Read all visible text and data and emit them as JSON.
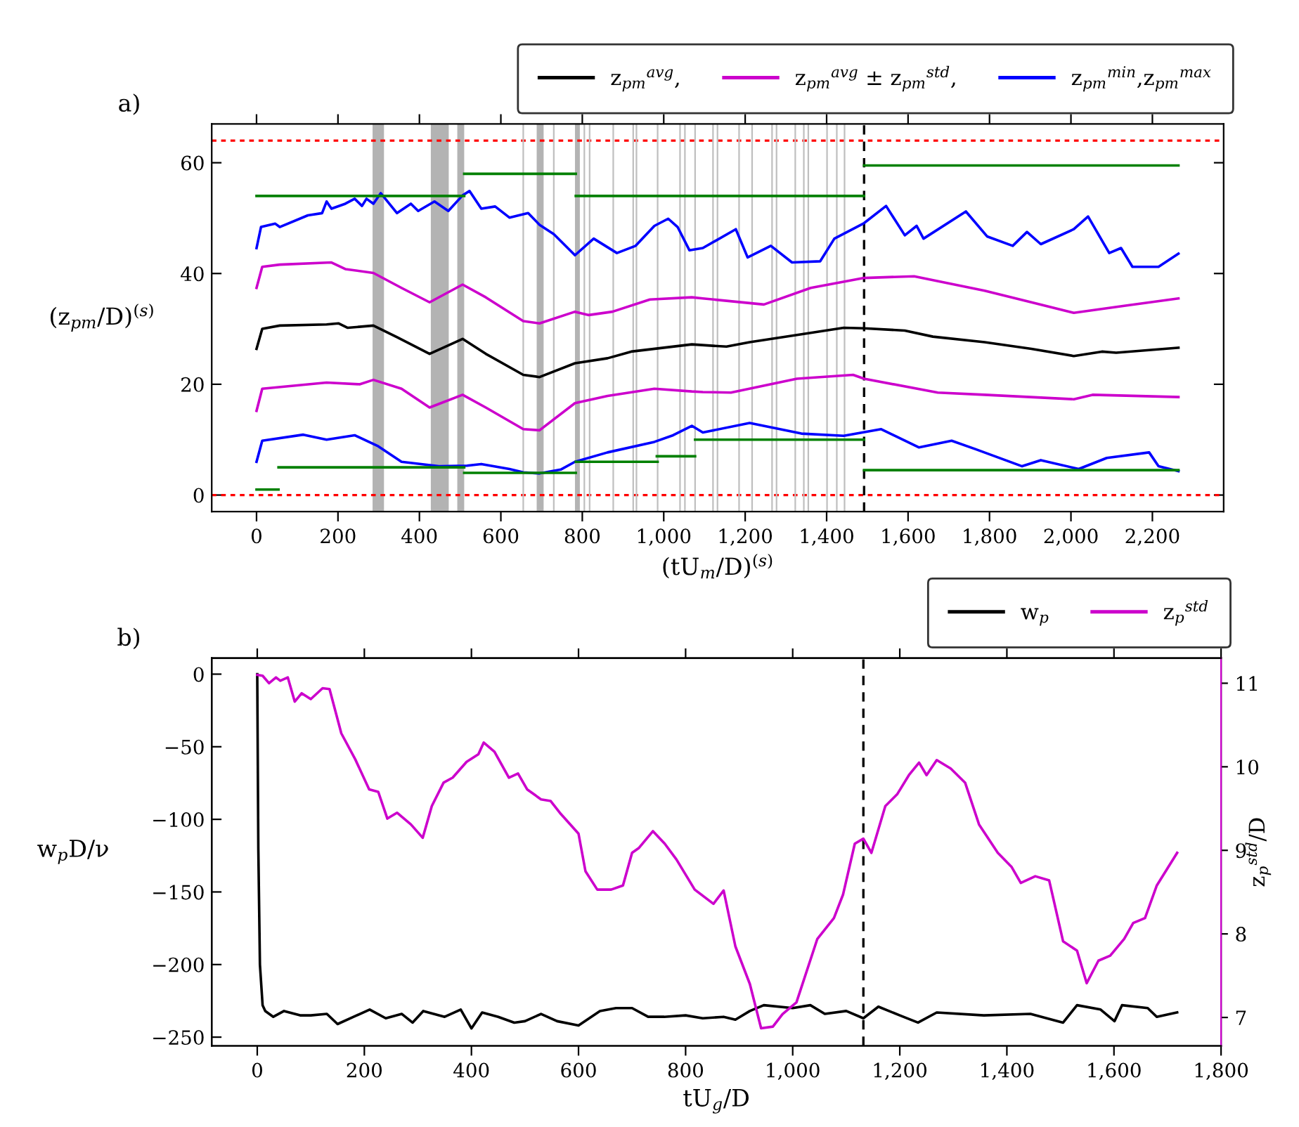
{
  "chart_data": [
    {
      "type": "line",
      "xlabel": "(tU$_{m}$/D)$^{(s)}$",
      "ylabel": "(z$_{pm}$/D)$^{(s)}$",
      "annotations": [
        "a)"
      ],
      "xlim": [
        -110,
        2375
      ],
      "ylim": [
        -3,
        67
      ],
      "xticks": [
        0,
        200,
        400,
        600,
        800,
        {
          "value": 1000,
          "label": "1,000"
        },
        {
          "value": 1200,
          "label": "1,200"
        },
        {
          "value": 1400,
          "label": "1,400"
        },
        {
          "value": 1600,
          "label": "1,600"
        },
        {
          "value": 1800,
          "label": "1,800"
        },
        {
          "value": 2000,
          "label": "2,000"
        },
        {
          "value": 2200,
          "label": "2,200"
        }
      ],
      "yticks": [
        0,
        20,
        40,
        60
      ],
      "grid": false,
      "legend": "top right",
      "ref_lines": [
        {
          "axis": "y",
          "value": 0,
          "color": "#ff0000",
          "line_style": "dotted"
        },
        {
          "axis": "y",
          "value": 64,
          "color": "#ff0000",
          "line_style": "dotted"
        },
        {
          "axis": "x",
          "value": 1492,
          "color": "#000000",
          "line_style": "dashed"
        },
        {
          "axis": "x",
          "value": 655,
          "color": "#bfbfbf"
        },
        {
          "axis": "x",
          "value": 730,
          "color": "#bfbfbf"
        },
        {
          "axis": "x",
          "value": 805,
          "color": "#bfbfbf"
        },
        {
          "axis": "x",
          "value": 818,
          "color": "#bfbfbf"
        },
        {
          "axis": "x",
          "value": 876,
          "color": "#bfbfbf"
        },
        {
          "axis": "x",
          "value": 925,
          "color": "#bfbfbf"
        },
        {
          "axis": "x",
          "value": 933,
          "color": "#bfbfbf"
        },
        {
          "axis": "x",
          "value": 985,
          "color": "#bfbfbf"
        },
        {
          "axis": "x",
          "value": 1040,
          "color": "#bfbfbf"
        },
        {
          "axis": "x",
          "value": 1052,
          "color": "#bfbfbf"
        },
        {
          "axis": "x",
          "value": 1077,
          "color": "#bfbfbf"
        },
        {
          "axis": "x",
          "value": 1121,
          "color": "#bfbfbf"
        },
        {
          "axis": "x",
          "value": 1132,
          "color": "#bfbfbf"
        },
        {
          "axis": "x",
          "value": 1185,
          "color": "#bfbfbf"
        },
        {
          "axis": "x",
          "value": 1217,
          "color": "#bfbfbf"
        },
        {
          "axis": "x",
          "value": 1266,
          "color": "#bfbfbf"
        },
        {
          "axis": "x",
          "value": 1277,
          "color": "#bfbfbf"
        },
        {
          "axis": "x",
          "value": 1323,
          "color": "#bfbfbf"
        },
        {
          "axis": "x",
          "value": 1344,
          "color": "#bfbfbf"
        },
        {
          "axis": "x",
          "value": 1355,
          "color": "#bfbfbf"
        },
        {
          "axis": "x",
          "value": 1401,
          "color": "#bfbfbf"
        },
        {
          "axis": "x",
          "value": 1425,
          "color": "#bfbfbf"
        },
        {
          "axis": "x",
          "value": 1444,
          "color": "#bfbfbf"
        }
      ],
      "bands": [
        {
          "axis": "x",
          "from": 285,
          "to": 313,
          "color": "#b3b3b3"
        },
        {
          "axis": "x",
          "from": 428,
          "to": 472,
          "color": "#b3b3b3"
        },
        {
          "axis": "x",
          "from": 493,
          "to": 510,
          "color": "#b3b3b3"
        },
        {
          "axis": "x",
          "from": 688,
          "to": 705,
          "color": "#b3b3b3"
        },
        {
          "axis": "x",
          "from": 782,
          "to": 794,
          "color": "#b3b3b3"
        }
      ],
      "series": [
        {
          "name": "z$_{pm}$$^{avg}$,",
          "color": "#000000",
          "x": [
            0,
            14,
            57,
            172,
            201,
            224,
            287,
            345,
            425,
            506,
            563,
            655,
            695,
            782,
            862,
            920,
            1069,
            1154,
            1211,
            1327,
            1442,
            1492,
            1592,
            1661,
            1788,
            1903,
            2007,
            2076,
            2111,
            2264
          ],
          "values": [
            26.4,
            30.0,
            30.6,
            30.8,
            31.0,
            30.2,
            30.6,
            28.5,
            25.5,
            28.2,
            25.5,
            21.7,
            21.3,
            23.8,
            24.7,
            25.9,
            27.2,
            26.8,
            27.6,
            28.9,
            30.2,
            30.1,
            29.7,
            28.6,
            27.6,
            26.4,
            25.1,
            25.9,
            25.7,
            26.6
          ]
        },
        {
          "name": "z$_{pm}$$^{avg}$ ± z$_{pm}$$^{std}$,",
          "color": "#cc00cc",
          "x": [
            0,
            14,
            57,
            184,
            218,
            287,
            356,
            425,
            506,
            563,
            655,
            695,
            782,
            816,
            874,
            966,
            1069,
            1096,
            1246,
            1361,
            1492,
            1615,
            1788,
            1903,
            2007,
            2134,
            2264
          ],
          "values": [
            37.4,
            41.2,
            41.6,
            42.0,
            40.8,
            40.1,
            37.4,
            34.8,
            38.0,
            35.7,
            31.4,
            31.0,
            33.1,
            32.5,
            33.1,
            35.3,
            35.7,
            35.5,
            34.4,
            37.4,
            39.2,
            39.5,
            36.9,
            34.8,
            32.9,
            34.2,
            35.5
          ]
        },
        {
          "color": "#cc00cc",
          "x": [
            0,
            14,
            172,
            253,
            287,
            356,
            425,
            506,
            563,
            655,
            695,
            782,
            862,
            977,
            1069,
            1096,
            1165,
            1327,
            1465,
            1492,
            1673,
            1788,
            2007,
            2053,
            2264
          ],
          "values": [
            15.2,
            19.2,
            20.3,
            20.0,
            20.8,
            19.2,
            15.8,
            18.1,
            15.8,
            11.9,
            11.7,
            16.6,
            17.9,
            19.2,
            18.7,
            18.6,
            18.5,
            21.0,
            21.7,
            21.0,
            18.5,
            18.1,
            17.3,
            18.1,
            17.7
          ]
        },
        {
          "name": "z$_{pm}$$^{min}$,z$_{pm}$$^{max}$",
          "color": "#0000ff",
          "x": [
            0,
            11,
            46,
            57,
            126,
            161,
            172,
            184,
            218,
            241,
            259,
            270,
            287,
            305,
            345,
            379,
            397,
            437,
            471,
            506,
            523,
            552,
            586,
            621,
            667,
            695,
            730,
            782,
            828,
            885,
            931,
            977,
            1011,
            1034,
            1063,
            1096,
            1177,
            1206,
            1263,
            1315,
            1384,
            1419,
            1492,
            1546,
            1592,
            1621,
            1638,
            1742,
            1794,
            1857,
            1892,
            1926,
            2007,
            2042,
            2094,
            2123,
            2151,
            2215,
            2264
          ],
          "values": [
            44.6,
            48.4,
            49.0,
            48.4,
            50.5,
            50.9,
            53.0,
            51.7,
            52.6,
            53.5,
            52.2,
            53.5,
            52.6,
            54.5,
            50.9,
            52.6,
            51.3,
            53.0,
            51.3,
            54.1,
            54.9,
            51.7,
            52.1,
            50.1,
            50.9,
            48.8,
            47.1,
            43.3,
            46.3,
            43.7,
            45.0,
            48.6,
            49.9,
            48.4,
            44.2,
            44.6,
            48.0,
            42.9,
            45.0,
            42.0,
            42.2,
            46.3,
            49.1,
            52.2,
            46.9,
            48.6,
            46.3,
            51.2,
            46.7,
            45.0,
            47.5,
            45.3,
            48.0,
            50.3,
            43.7,
            44.6,
            41.2,
            41.2,
            43.6
          ]
        },
        {
          "color": "#0000ff",
          "x": [
            0,
            14,
            115,
            172,
            241,
            299,
            356,
            448,
            517,
            552,
            621,
            655,
            695,
            747,
            782,
            862,
            977,
            1023,
            1069,
            1096,
            1211,
            1338,
            1442,
            1534,
            1627,
            1707,
            1765,
            1880,
            1926,
            2019,
            2088,
            2192,
            2215,
            2264
          ],
          "values": [
            6.0,
            9.8,
            10.9,
            10.0,
            10.8,
            8.8,
            6.0,
            5.2,
            5.3,
            5.6,
            4.7,
            4.1,
            3.9,
            4.6,
            6.0,
            7.7,
            9.6,
            10.8,
            12.5,
            11.3,
            13.0,
            11.1,
            10.7,
            11.9,
            8.6,
            9.8,
            8.3,
            5.2,
            6.3,
            4.7,
            6.7,
            7.7,
            5.2,
            4.3
          ]
        },
        {
          "color": "#008000",
          "x": [
            0,
            510
          ],
          "values": [
            54,
            54
          ]
        },
        {
          "color": "#008000",
          "x": [
            510,
            784
          ],
          "values": [
            58,
            58
          ]
        },
        {
          "color": "#008000",
          "x": [
            784,
            1492
          ],
          "values": [
            54,
            54
          ]
        },
        {
          "color": "#008000",
          "x": [
            1492,
            2264
          ],
          "values": [
            59.5,
            59.5
          ]
        },
        {
          "color": "#008000",
          "x": [
            0,
            54
          ],
          "values": [
            1,
            1
          ]
        },
        {
          "color": "#008000",
          "x": [
            54,
            510
          ],
          "values": [
            5,
            5
          ]
        },
        {
          "color": "#008000",
          "x": [
            510,
            784
          ],
          "values": [
            4,
            4
          ]
        },
        {
          "color": "#008000",
          "x": [
            784,
            985
          ],
          "values": [
            6,
            6
          ]
        },
        {
          "color": "#008000",
          "x": [
            983,
            1077
          ],
          "values": [
            7,
            7
          ]
        },
        {
          "color": "#008000",
          "x": [
            1077,
            1492
          ],
          "values": [
            10,
            10
          ]
        },
        {
          "color": "#008000",
          "x": [
            1492,
            2264
          ],
          "values": [
            4.5,
            4.5
          ]
        }
      ]
    },
    {
      "type": "line",
      "xlabel": "tU$_{g}$/D",
      "ylabel": "w$_{p}$D/ν",
      "y2label": "z$_{p}$$^{std}$/D",
      "annotations": [
        "b)"
      ],
      "xlim": [
        -85,
        1800
      ],
      "ylim": [
        -256,
        11
      ],
      "y2lim": [
        6.66,
        11.3
      ],
      "xticks": [
        0,
        200,
        400,
        600,
        800,
        {
          "value": 1000,
          "label": "1,000"
        },
        {
          "value": 1200,
          "label": "1,200"
        },
        {
          "value": 1400,
          "label": "1,400"
        },
        {
          "value": 1600,
          "label": "1,600"
        },
        {
          "value": 1800,
          "label": "1,800"
        }
      ],
      "yticks": [
        {
          "value": -250,
          "label": "−250"
        },
        {
          "value": -200,
          "label": "−200"
        },
        {
          "value": -150,
          "label": "−150"
        },
        {
          "value": -100,
          "label": "−100"
        },
        {
          "value": -50,
          "label": "−50"
        },
        0
      ],
      "y2ticks": [
        7,
        8,
        9,
        10,
        11
      ],
      "grid": false,
      "legend": "top right",
      "ref_lines": [
        {
          "axis": "x",
          "value": 1132,
          "color": "#000000",
          "line_style": "dashed"
        }
      ],
      "series": [
        {
          "name": "w$_{p}$",
          "color": "#000000",
          "x": [
            0,
            2,
            5,
            10,
            15,
            30,
            50,
            80,
            100,
            130,
            150,
            180,
            210,
            240,
            270,
            290,
            310,
            350,
            380,
            400,
            420,
            450,
            480,
            500,
            530,
            560,
            600,
            640,
            670,
            700,
            730,
            760,
            800,
            832,
            871,
            893,
            920,
            946,
            1000,
            1033,
            1060,
            1100,
            1132,
            1160,
            1200,
            1234,
            1269,
            1357,
            1444,
            1505,
            1531,
            1575,
            1601,
            1615,
            1663,
            1680,
            1718
          ],
          "values": [
            0,
            -120,
            -200,
            -228,
            -232,
            -236,
            -232,
            -235,
            -235,
            -234,
            -241,
            -236,
            -231,
            -237,
            -234,
            -240,
            -232,
            -236,
            -231,
            -244,
            -233,
            -236,
            -240,
            -239,
            -234,
            -239,
            -242,
            -232,
            -230,
            -230,
            -236,
            -236,
            -235,
            -237,
            -236,
            -238,
            -232,
            -228,
            -230,
            -228,
            -234,
            -232,
            -237,
            -229,
            -235,
            -240,
            -233,
            -235,
            -234,
            -240,
            -228,
            -231,
            -239,
            -228,
            -230,
            -236,
            -233
          ]
        },
        {
          "name": "z$_{p}$$^{std}$",
          "axis": "y2",
          "color": "#cc00cc",
          "x": [
            0,
            10,
            22,
            35,
            43,
            57,
            70,
            83,
            100,
            122,
            135,
            157,
            183,
            209,
            226,
            243,
            261,
            287,
            309,
            326,
            348,
            365,
            391,
            413,
            423,
            443,
            470,
            487,
            504,
            530,
            548,
            565,
            600,
            613,
            635,
            661,
            683,
            700,
            713,
            739,
            761,
            783,
            817,
            852,
            871,
            893,
            920,
            941,
            963,
            981,
            1007,
            1046,
            1077,
            1094,
            1116,
            1132,
            1147,
            1173,
            1195,
            1217,
            1236,
            1250,
            1269,
            1295,
            1322,
            1348,
            1383,
            1409,
            1426,
            1453,
            1479,
            1505,
            1531,
            1549,
            1571,
            1593,
            1619,
            1636,
            1658,
            1680,
            1718
          ],
          "values": [
            11.1,
            11.09,
            11.0,
            11.07,
            11.03,
            11.07,
            10.78,
            10.88,
            10.81,
            10.94,
            10.93,
            10.4,
            10.09,
            9.73,
            9.7,
            9.38,
            9.45,
            9.31,
            9.15,
            9.53,
            9.81,
            9.87,
            10.06,
            10.15,
            10.29,
            10.18,
            9.87,
            9.92,
            9.73,
            9.61,
            9.59,
            9.45,
            9.2,
            8.75,
            8.53,
            8.53,
            8.58,
            8.97,
            9.03,
            9.23,
            9.08,
            8.89,
            8.53,
            8.36,
            8.52,
            7.85,
            7.4,
            6.87,
            6.89,
            7.04,
            7.18,
            7.94,
            8.19,
            8.47,
            9.08,
            9.14,
            8.97,
            9.53,
            9.67,
            9.9,
            10.05,
            9.9,
            10.08,
            9.98,
            9.81,
            9.31,
            8.97,
            8.8,
            8.61,
            8.69,
            8.64,
            7.91,
            7.8,
            7.41,
            7.68,
            7.74,
            7.94,
            8.13,
            8.19,
            8.58,
            8.97
          ]
        }
      ]
    }
  ]
}
